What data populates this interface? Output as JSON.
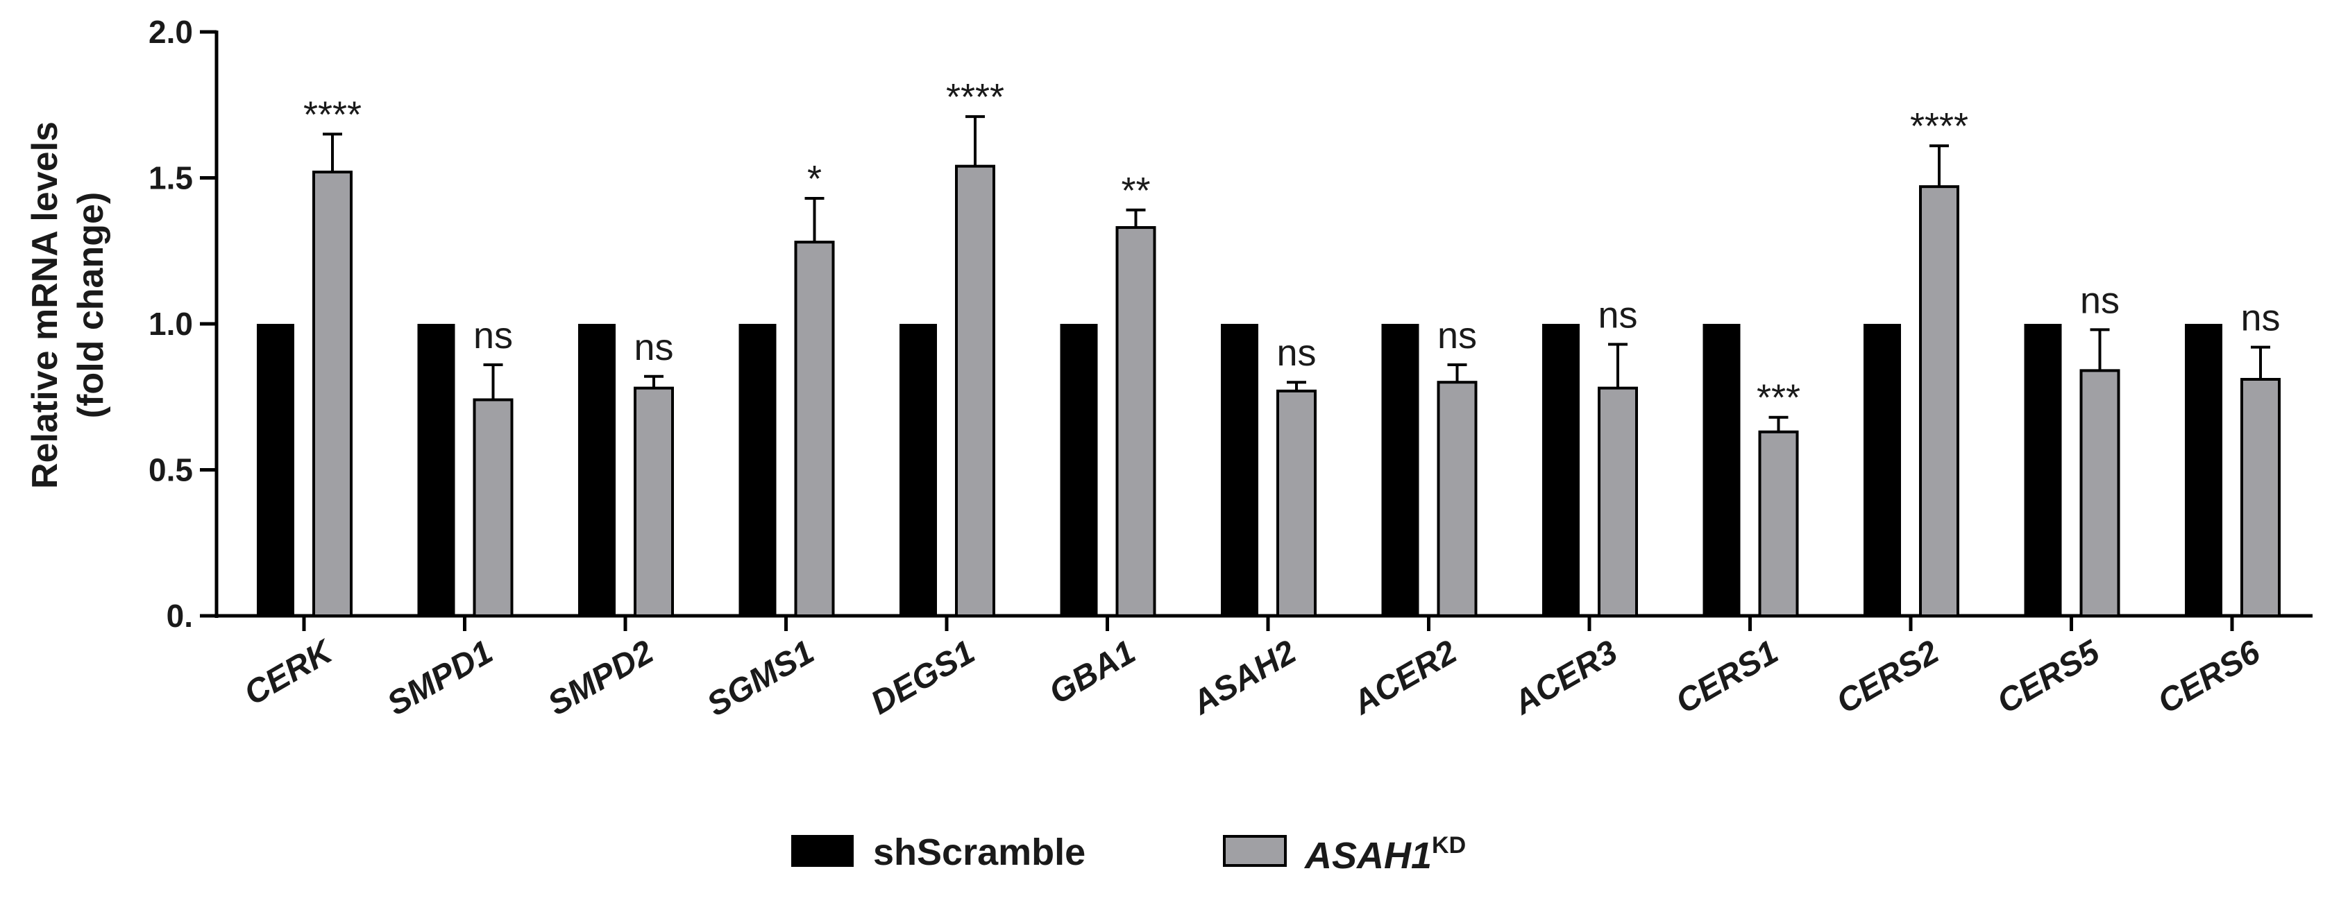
{
  "chart_data": {
    "type": "bar",
    "ylabel": [
      "Relative mRNA levels",
      "(fold change)"
    ],
    "ylim": [
      0,
      2.0
    ],
    "yticks": [
      0,
      0.5,
      1.0,
      1.5,
      2.0
    ],
    "ytick_labels": [
      "0.",
      "0.5",
      "1.0",
      "1.5",
      "2.0"
    ],
    "categories": [
      "CERK",
      "SMPD1",
      "SMPD2",
      "SGMS1",
      "DEGS1",
      "GBA1",
      "ASAH2",
      "ACER2",
      "ACER3",
      "CERS1",
      "CERS2",
      "CERS5",
      "CERS6"
    ],
    "series": [
      {
        "name": "shScramble",
        "color": "#000000",
        "values": [
          1,
          1,
          1,
          1,
          1,
          1,
          1,
          1,
          1,
          1,
          1,
          1,
          1
        ]
      },
      {
        "name": "ASAH1",
        "name_superscript": "KD",
        "color": "#a0a0a4",
        "values": [
          1.52,
          0.74,
          0.78,
          1.28,
          1.54,
          1.33,
          0.77,
          0.8,
          0.78,
          0.63,
          1.47,
          0.84,
          0.81
        ],
        "errors": [
          0.13,
          0.12,
          0.04,
          0.15,
          0.17,
          0.06,
          0.03,
          0.06,
          0.15,
          0.05,
          0.14,
          0.14,
          0.11
        ]
      }
    ],
    "significance": [
      "****",
      "ns",
      "ns",
      "*",
      "****",
      "**",
      "ns",
      "ns",
      "ns",
      "***",
      "****",
      "ns",
      "ns"
    ],
    "legend_position": "bottom-center",
    "grid": false
  }
}
